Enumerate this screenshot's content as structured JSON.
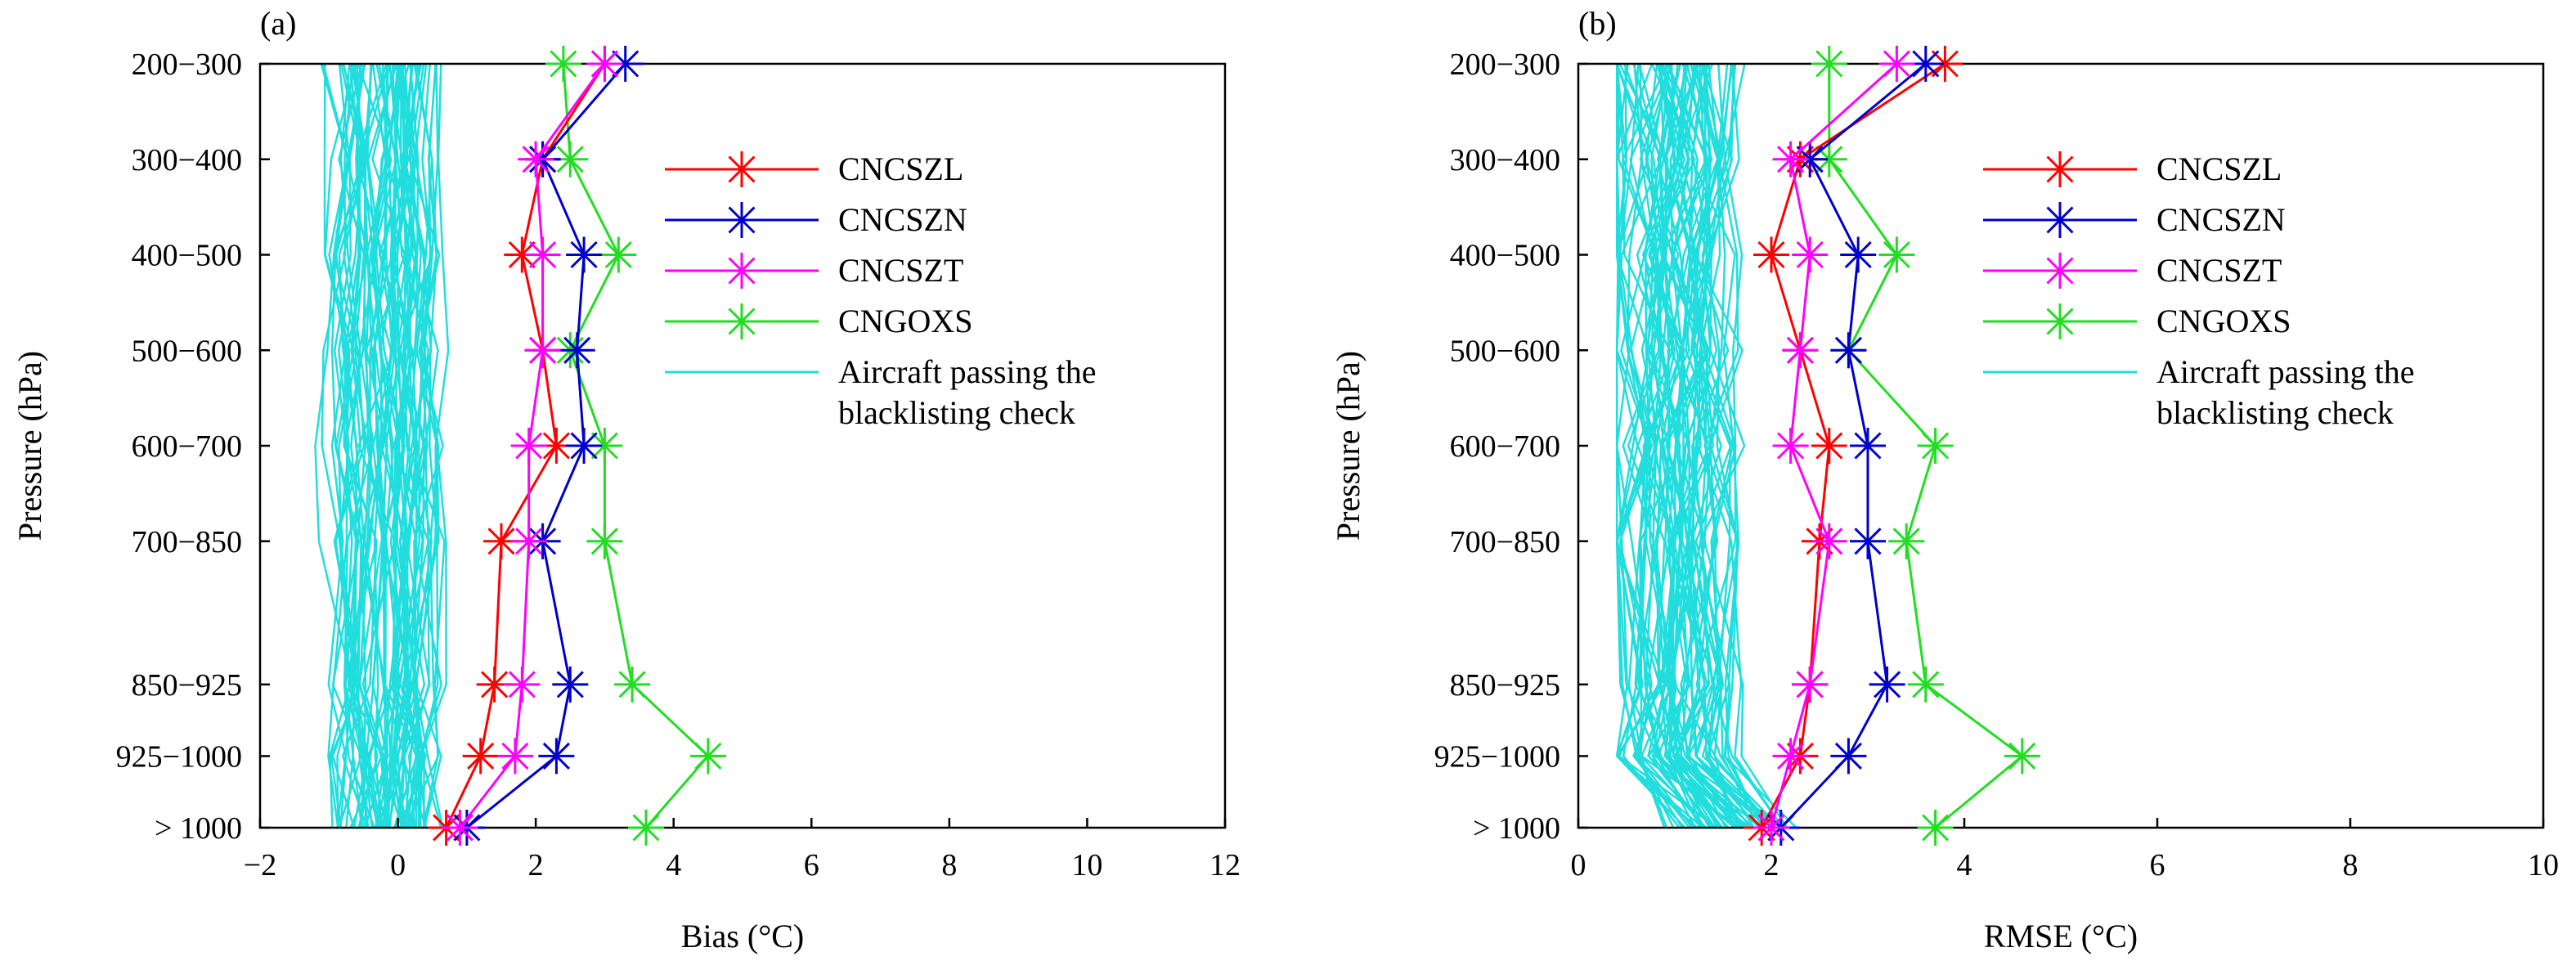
{
  "figure": {
    "panels": [
      {
        "label": "(a)"
      },
      {
        "label": "(b)"
      }
    ]
  },
  "chart_data": [
    {
      "type": "line",
      "panel": "(a)",
      "xlabel": "Bias (°C)",
      "ylabel": "Pressure (hPa)",
      "xlim": [
        -2,
        12
      ],
      "xticks": [
        "−2",
        "0",
        "2",
        "4",
        "6",
        "8",
        "10",
        "12"
      ],
      "categories": [
        "200−300",
        "300−400",
        "400−500",
        "500−600",
        "600−700",
        "700−850",
        "850−925",
        "925−1000",
        "> 1000"
      ],
      "category_positions": [
        250,
        350,
        450,
        550,
        650,
        750,
        900,
        975,
        1050
      ],
      "legend_position": "center-right",
      "series": [
        {
          "name": "CNCSZL",
          "color": "#ff0000",
          "marker": "asterisk",
          "values": [
            3.0,
            2.1,
            1.8,
            2.1,
            2.3,
            1.5,
            1.4,
            1.2,
            0.7
          ]
        },
        {
          "name": "CNCSZN",
          "color": "#0000cc",
          "marker": "asterisk",
          "values": [
            3.3,
            2.1,
            2.7,
            2.6,
            2.7,
            2.1,
            2.5,
            2.3,
            1.0
          ]
        },
        {
          "name": "CNCSZT",
          "color": "#ff00ff",
          "marker": "asterisk",
          "values": [
            3.0,
            2.0,
            2.1,
            2.1,
            1.9,
            1.9,
            1.8,
            1.7,
            0.9
          ]
        },
        {
          "name": "CNGOXS",
          "color": "#22dd22",
          "marker": "asterisk",
          "values": [
            2.4,
            2.5,
            3.2,
            2.5,
            3.0,
            3.0,
            3.4,
            4.5,
            3.6
          ]
        },
        {
          "name": "Aircraft passing the blacklisting check",
          "color": "#22dddd",
          "marker": "none",
          "values_range": [
            -1.4,
            1.4
          ]
        }
      ]
    },
    {
      "type": "line",
      "panel": "(b)",
      "xlabel": "RMSE (°C)",
      "ylabel": "Pressure (hPa)",
      "xlim": [
        0,
        10
      ],
      "xticks": [
        "0",
        "2",
        "4",
        "6",
        "8",
        "10"
      ],
      "categories": [
        "200−300",
        "300−400",
        "400−500",
        "500−600",
        "600−700",
        "700−850",
        "850−925",
        "925−1000",
        "> 1000"
      ],
      "category_positions": [
        250,
        350,
        450,
        550,
        650,
        750,
        900,
        975,
        1050
      ],
      "legend_position": "center-right",
      "series": [
        {
          "name": "CNCSZL",
          "color": "#ff0000",
          "marker": "asterisk",
          "values": [
            3.8,
            2.3,
            2.0,
            2.3,
            2.6,
            2.5,
            2.4,
            2.3,
            1.9
          ]
        },
        {
          "name": "CNCSZN",
          "color": "#0000cc",
          "marker": "asterisk",
          "values": [
            3.6,
            2.4,
            2.9,
            2.8,
            3.0,
            3.0,
            3.2,
            2.8,
            2.1
          ]
        },
        {
          "name": "CNCSZT",
          "color": "#ff00ff",
          "marker": "asterisk",
          "values": [
            3.3,
            2.2,
            2.4,
            2.3,
            2.2,
            2.6,
            2.4,
            2.2,
            2.0
          ]
        },
        {
          "name": "CNGOXS",
          "color": "#22dd22",
          "marker": "asterisk",
          "values": [
            2.6,
            2.6,
            3.3,
            2.8,
            3.7,
            3.4,
            3.6,
            4.6,
            3.7
          ]
        },
        {
          "name": "Aircraft passing the blacklisting check",
          "color": "#22dddd",
          "marker": "none",
          "values_range": [
            0.4,
            2.8
          ]
        }
      ]
    }
  ]
}
